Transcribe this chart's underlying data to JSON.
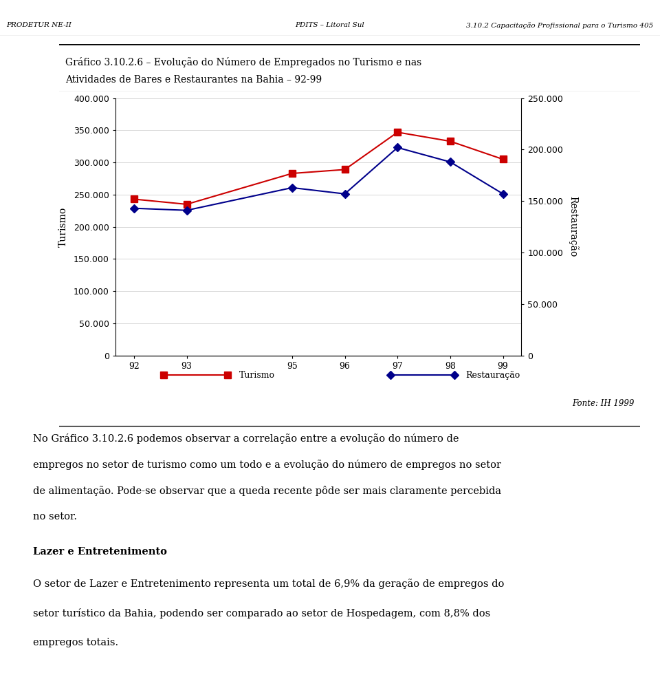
{
  "header_left": "PRODETUR NE-II",
  "header_center": "PDITS – Litoral Sul",
  "header_right": "3.10.2 Capacitação Profissional para o Turismo 405",
  "chart_title_line1": "Gráfico 3.10.2.6 – Evolução do Número de Empregados no Turismo e nas",
  "chart_title_line2": "Atividades de Bares e Restaurantes na Bahia – 92-99",
  "years": [
    92,
    93,
    95,
    96,
    97,
    98,
    99
  ],
  "turismo": [
    243000,
    235000,
    283000,
    289000,
    347000,
    333000,
    305000
  ],
  "restauracao": [
    143000,
    141000,
    163000,
    157000,
    202000,
    188000,
    157000
  ],
  "turismo_color": "#cc0000",
  "restauracao_color": "#00008b",
  "left_ylim": [
    0,
    400000
  ],
  "right_ylim": [
    0,
    250000
  ],
  "left_yticks": [
    0,
    50000,
    100000,
    150000,
    200000,
    250000,
    300000,
    350000,
    400000
  ],
  "right_yticks": [
    0,
    50000,
    100000,
    150000,
    200000,
    250000
  ],
  "left_ylabel": "Turismo",
  "right_ylabel": "Restauração",
  "fonte": "Fonte: IH 1999",
  "legend_turismo": "Turismo",
  "legend_restauracao": "Restauração",
  "background_color": "#ffffff",
  "body_line1": "No Gráfico 3.10.2.6 podemos observar a correlação entre a evolução do número de",
  "body_line2": "empregos no setor de turismo como um todo e a evolução do número de empregos no setor",
  "body_line3": "de alimentação. Pode-se observar que a queda recente pôde ser mais claramente percebida",
  "body_line4": "no setor.",
  "section_title": "Lazer e Entretenimento",
  "section_line1": "O setor de Lazer e Entretenimento representa um total de 6,9% da geração de empregos do",
  "section_line2": "setor turístico da Bahia, podendo ser comparado ao setor de Hospedagem, com 8,8% dos",
  "section_line3": "empregos totais."
}
